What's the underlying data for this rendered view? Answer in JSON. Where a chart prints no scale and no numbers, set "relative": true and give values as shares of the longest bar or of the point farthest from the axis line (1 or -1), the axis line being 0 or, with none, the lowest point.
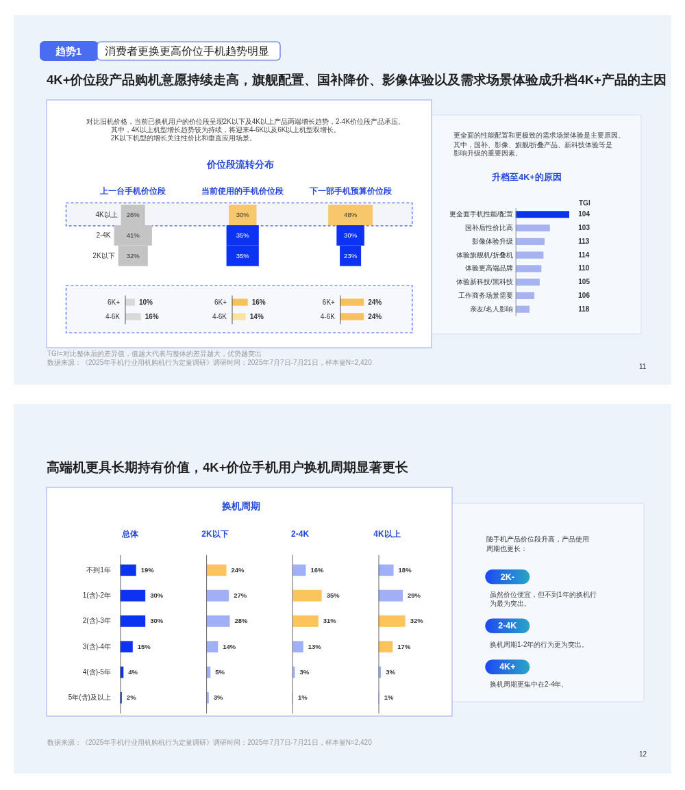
{
  "chart_data": [
    {
      "type": "other",
      "title": "4K+价位段产品购机意愿持续走高，旗舰配置、国补降价、影像体验以及需求场景体验成升档4K+产品的主因",
      "annotations": [
        "趋势1",
        "消费者更换更高价位手机趋势明显"
      ]
    },
    {
      "type": "other",
      "title": "价位段流转分布",
      "annotations": [
        "对比旧机价格，当前已换机用户的价位段呈现2K以下及4K以上产品两端增长趋势，2-4K价位段产品承压。",
        "其中，4K以上机型增长趋势较为持续，将迎来4-6K以及6K以上机型双增长。",
        "2K以下机型的增长关注性价比和垂直应用场景。"
      ],
      "categories": [
        "上一台手机价位段",
        "当前使用的手机价位段",
        "下一部手机预算价位段"
      ],
      "series": [
        {
          "name": "4K以上",
          "values": [
            26,
            30,
            48
          ],
          "colors": [
            "#c4c4c4",
            "#f6c86b",
            "#f6c86b"
          ],
          "value_labels": [
            "26%",
            "30%",
            "48%"
          ]
        },
        {
          "name": "2-4K",
          "values": [
            41,
            35,
            30
          ],
          "colors": [
            "#c4c4c4",
            "#0b33f1",
            "#0b33f1"
          ],
          "value_labels": [
            "41%",
            "35%",
            "30%"
          ]
        },
        {
          "name": "2K以下",
          "values": [
            32,
            35,
            23
          ],
          "colors": [
            "#c4c4c4",
            "#0b33f1",
            "#0b33f1"
          ],
          "value_labels": [
            "32%",
            "35%",
            "23%"
          ]
        }
      ]
    },
    {
      "type": "bar",
      "orientation": "horizontal",
      "categories": [
        "6K+",
        "4-6K"
      ],
      "values": [
        10,
        16
      ],
      "colors": [
        "#d9d9d9",
        "#d9d9d9"
      ],
      "value_labels": [
        "10%",
        "16%"
      ],
      "tick_labels": "y"
    },
    {
      "type": "bar",
      "orientation": "horizontal",
      "categories": [
        "6K+",
        "4-6K"
      ],
      "values": [
        16,
        14
      ],
      "colors": [
        "#f6c35a",
        "#f8e3a4"
      ],
      "value_labels": [
        "16%",
        "14%"
      ],
      "tick_labels": "y"
    },
    {
      "type": "bar",
      "orientation": "horizontal",
      "categories": [
        "6K+",
        "4-6K"
      ],
      "values": [
        24,
        24
      ],
      "colors": [
        "#f6c35a",
        "#f6c35a"
      ],
      "value_labels": [
        "24%",
        "24%"
      ],
      "tick_labels": "y"
    },
    {
      "type": "bar",
      "orientation": "horizontal",
      "relative": true,
      "title": "升档至4K+的原因",
      "annotations": [
        "更全面的性能配置和更极致的需求场景体验是主要原因。",
        "其中，国补、影像、旗舰/折叠产品、新科技体验等是影响升级的重要因素。"
      ],
      "categories": [
        "更全面手机性能/配置",
        "国补后性价比高",
        "影像体验升级",
        "体验旗舰机/折叠机",
        "体验更高端品牌",
        "体验新科技/黑科技",
        "工作商务场景需要",
        "亲友/名人影响"
      ],
      "values": [
        1,
        0.64,
        0.54,
        0.52,
        0.48,
        0.45,
        0.35,
        0.26
      ],
      "colors": [
        "#0a33f0",
        "#a6b3f0",
        "#a6b3f0",
        "#a6b3f0",
        "#a6b3f0",
        "#a6b3f0",
        "#a6b3f0",
        "#a6b3f0"
      ]
    },
    {
      "type": "other",
      "title": "TGI",
      "values": [
        104,
        103,
        113,
        114,
        110,
        105,
        106,
        118
      ],
      "data_labels": true
    },
    {
      "type": "other",
      "annotations": [
        "TGI=对比整体后的差异值，值越大代表与整体的差异越大，优势越突出",
        "数据来源：《2025年手机行业用机购机行为定量调研》调研时间：2025年7月7日-7月21日，样本量N=2,420",
        "11"
      ]
    },
    {
      "type": "other",
      "title": "高端机更具长期持有价值，4K+价位手机用户换机周期显著更长",
      "annotations": [
        "换机周期"
      ]
    },
    {
      "type": "bar",
      "orientation": "horizontal",
      "title": "总体",
      "categories": [
        "不到1年",
        "1(含)-2年",
        "2(含)-3年",
        "3(含)-4年",
        "4(含)-5年",
        "5年(含)及以上"
      ],
      "values": [
        19,
        30,
        30,
        15,
        4,
        2
      ],
      "colors": [
        "#0b33f1",
        "#0b33f1",
        "#0b33f1",
        "#0b33f1",
        "#0b33f1",
        "#0b33f1"
      ],
      "value_labels": [
        "19%",
        "30%",
        "30%",
        "15%",
        "4%",
        "2%"
      ],
      "tick_labels": "y"
    },
    {
      "type": "bar",
      "orientation": "horizontal",
      "title": "2K以下",
      "categories": [
        "不到1年",
        "1(含)-2年",
        "2(含)-3年",
        "3(含)-4年",
        "4(含)-5年",
        "5年(含)及以上"
      ],
      "values": [
        24,
        27,
        28,
        14,
        5,
        3
      ],
      "colors": [
        "#fcc55b",
        "#a0b0f6",
        "#a0b0f6",
        "#a0b0f6",
        "#a0b0f6",
        "#a0b0f6"
      ],
      "value_labels": [
        "24%",
        "27%",
        "28%",
        "14%",
        "5%",
        "3%"
      ],
      "tick_labels": false
    },
    {
      "type": "bar",
      "orientation": "horizontal",
      "title": "2-4K",
      "categories": [
        "不到1年",
        "1(含)-2年",
        "2(含)-3年",
        "3(含)-4年",
        "4(含)-5年",
        "5年(含)及以上"
      ],
      "values": [
        16,
        35,
        31,
        13,
        3,
        1
      ],
      "colors": [
        "#a0b0f6",
        "#fcc55b",
        "#fcc55b",
        "#a0b0f6",
        "#a0b0f6",
        "#a0b0f6"
      ],
      "value_labels": [
        "16%",
        "35%",
        "31%",
        "13%",
        "3%",
        "1%"
      ],
      "tick_labels": false
    },
    {
      "type": "bar",
      "orientation": "horizontal",
      "title": "4K以上",
      "categories": [
        "不到1年",
        "1(含)-2年",
        "2(含)-3年",
        "3(含)-4年",
        "4(含)-5年",
        "5年(含)及以上"
      ],
      "values": [
        18,
        29,
        32,
        17,
        3,
        1
      ],
      "colors": [
        "#a0b0f6",
        "#a0b0f6",
        "#fcc55b",
        "#fcc55b",
        "#a0b0f6",
        "#a0b0f6"
      ],
      "value_labels": [
        "18%",
        "29%",
        "32%",
        "17%",
        "3%",
        "1%"
      ],
      "tick_labels": false
    },
    {
      "type": "other",
      "annotations": [
        "随手机产品价位段升高，产品使用周期也更长：",
        "2K-",
        "虽然价位便宜，但不到1年的换机行为最为突出。",
        "2-4K",
        "换机周期1-2年的行为更为突出。",
        "4K+",
        "换机周期更集中在2-4年。"
      ]
    },
    {
      "type": "other",
      "annotations": [
        "数据来源：《2025年手机行业用机购机行为定量调研》调研时间：2025年7月7日-7月21日，样本量N=2,420",
        "12"
      ]
    }
  ]
}
